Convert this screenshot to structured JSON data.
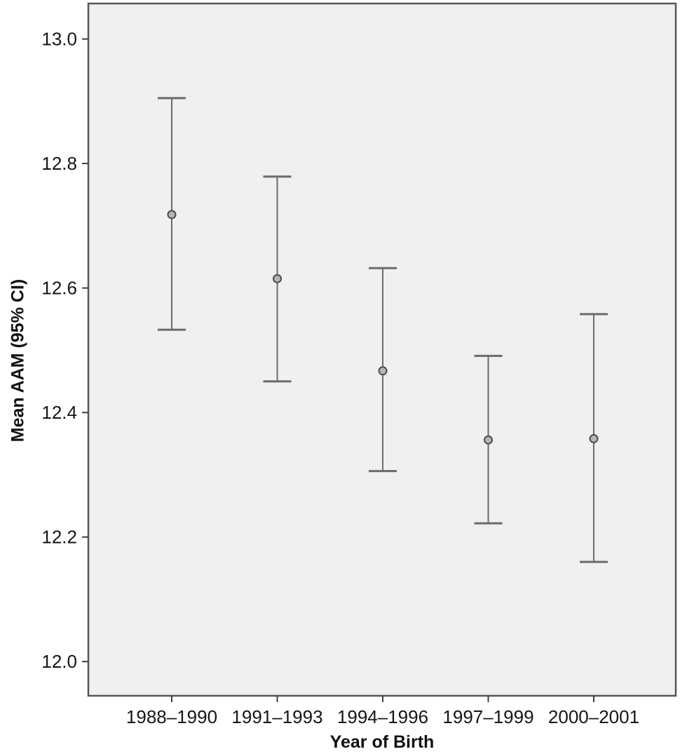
{
  "figure": {
    "y_axis_title": "Mean AAM (95% CI)",
    "x_axis_title": "Year of Birth"
  },
  "chart_data": {
    "type": "scatter",
    "subtype": "error-bar-plot",
    "title": "",
    "xlabel": "Year of Birth",
    "ylabel": "Mean AAM (95% CI)",
    "categories": [
      "1988–1990",
      "1991–1993",
      "1994–1996",
      "1997–1999",
      "2000–2001"
    ],
    "series": [
      {
        "name": "Mean AAM (95% CI)",
        "means": [
          12.718,
          12.615,
          12.467,
          12.356,
          12.358
        ],
        "ci_low": [
          12.533,
          12.45,
          12.306,
          12.222,
          12.16
        ],
        "ci_high": [
          12.905,
          12.779,
          12.632,
          12.491,
          12.558
        ]
      }
    ],
    "yticks": [
      13.0,
      12.8,
      12.6,
      12.4,
      12.2,
      12.0
    ],
    "ytick_labels": [
      "13.0",
      "12.8",
      "12.6",
      "12.4",
      "12.2",
      "12.0"
    ],
    "ylim": [
      11.945,
      13.057
    ],
    "grid": false,
    "legend_position": "none",
    "colors": {
      "plot_bg": "#f0f0ef",
      "outer_bg": "#ffffff",
      "frame": "#565656",
      "tick": "#3d3d3d",
      "errorbar_line": "#6b6b6b",
      "errorbar_cap": "#6b6b6b",
      "marker_fill": "#b5b5b5",
      "marker_stroke": "#4c4c4c",
      "tick_label_text": "#161616"
    }
  }
}
